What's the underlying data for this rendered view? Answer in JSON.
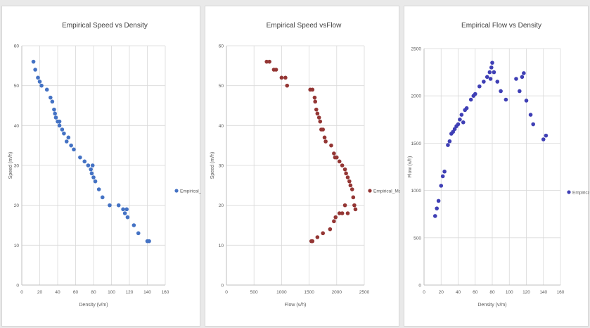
{
  "chart_data": [
    {
      "type": "scatter",
      "title": "Empirical Speed vs Density",
      "xlabel": "Density (v/m)",
      "ylabel": "Speed (m/h)",
      "xlim": [
        0,
        160
      ],
      "ylim": [
        0,
        60
      ],
      "xticks": [
        "0",
        "20",
        "40",
        "60",
        "80",
        "100",
        "120",
        "140",
        "160"
      ],
      "yticks": [
        "0",
        "10",
        "20",
        "30",
        "40",
        "50",
        "60"
      ],
      "grid": true,
      "legend_position": "right",
      "color": "#4472c4",
      "series": [
        {
          "name": "Empirical_Model",
          "x": [
            13,
            15,
            18,
            20,
            22,
            28,
            32,
            34,
            36,
            37,
            38,
            40,
            42,
            42,
            45,
            47,
            50,
            52,
            55,
            58,
            65,
            70,
            74,
            77,
            78,
            79,
            80,
            82,
            86,
            90,
            98,
            108,
            113,
            115,
            117,
            118,
            125,
            130,
            140,
            142
          ],
          "y": [
            56,
            54,
            52,
            51,
            50,
            49,
            47,
            46,
            44,
            43,
            42,
            41,
            40,
            41,
            39,
            38,
            36,
            37,
            35,
            34,
            32,
            31,
            30,
            29,
            28,
            30,
            27,
            26,
            24,
            22,
            20,
            20,
            19,
            18,
            19,
            17,
            15,
            13,
            11,
            11
          ]
        }
      ]
    },
    {
      "type": "scatter",
      "title": "Empirical Speed vsFlow",
      "xlabel": "Flow (v/h)",
      "ylabel": "Speed (m/h)",
      "xlim": [
        0,
        2500
      ],
      "ylim": [
        0,
        60
      ],
      "xticks": [
        "0",
        "500",
        "1000",
        "1500",
        "2000",
        "2500"
      ],
      "yticks": [
        "0",
        "10",
        "20",
        "30",
        "40",
        "50",
        "60"
      ],
      "grid": true,
      "legend_position": "right",
      "color": "#943634",
      "series": [
        {
          "name": "Empirical_Model",
          "x": [
            730,
            780,
            860,
            900,
            1000,
            1070,
            1100,
            1520,
            1560,
            1600,
            1610,
            1630,
            1650,
            1680,
            1700,
            1720,
            1750,
            1780,
            1800,
            1900,
            1950,
            1970,
            2000,
            2050,
            2100,
            2150,
            2170,
            2200,
            2230,
            2250,
            2280,
            2300,
            2320,
            2340,
            2200,
            2150,
            2100,
            2050,
            1980,
            1950,
            1880,
            1750,
            1650,
            1560,
            1540
          ],
          "y": [
            56,
            56,
            54,
            54,
            52,
            52,
            50,
            49,
            49,
            47,
            46,
            44,
            43,
            42,
            41,
            39,
            39,
            37,
            36,
            35,
            33,
            32,
            32,
            31,
            30,
            29,
            28,
            27,
            26,
            25,
            24,
            22,
            20,
            19,
            18,
            20,
            18,
            18,
            17,
            16,
            14,
            13,
            12,
            11,
            11
          ]
        }
      ]
    },
    {
      "type": "scatter",
      "title": "Empirical Flow vs Density",
      "xlabel": "Density (v/m)",
      "ylabel": "Flow (v/h)",
      "xlim": [
        0,
        160
      ],
      "ylim": [
        0,
        2500
      ],
      "xticks": [
        "0",
        "20",
        "40",
        "60",
        "80",
        "100",
        "120",
        "140",
        "160"
      ],
      "yticks": [
        "0",
        "500",
        "1000",
        "1500",
        "2000",
        "2500"
      ],
      "grid": true,
      "legend_position": "right",
      "color": "#3f3fb5",
      "series": [
        {
          "name": "Empirical_Mod",
          "x": [
            13,
            15,
            17,
            20,
            22,
            24,
            28,
            30,
            32,
            34,
            36,
            38,
            40,
            42,
            44,
            46,
            48,
            50,
            55,
            58,
            60,
            65,
            70,
            74,
            77,
            78,
            79,
            80,
            82,
            86,
            90,
            96,
            108,
            112,
            115,
            117,
            120,
            125,
            128,
            140,
            143
          ],
          "y": [
            730,
            810,
            890,
            1050,
            1150,
            1200,
            1480,
            1520,
            1600,
            1620,
            1650,
            1680,
            1700,
            1750,
            1800,
            1720,
            1850,
            1870,
            1960,
            2000,
            2020,
            2100,
            2150,
            2200,
            2250,
            2180,
            2300,
            2350,
            2250,
            2150,
            2050,
            1960,
            2180,
            2050,
            2200,
            2240,
            1950,
            1800,
            1700,
            1540,
            1580
          ]
        }
      ]
    }
  ]
}
